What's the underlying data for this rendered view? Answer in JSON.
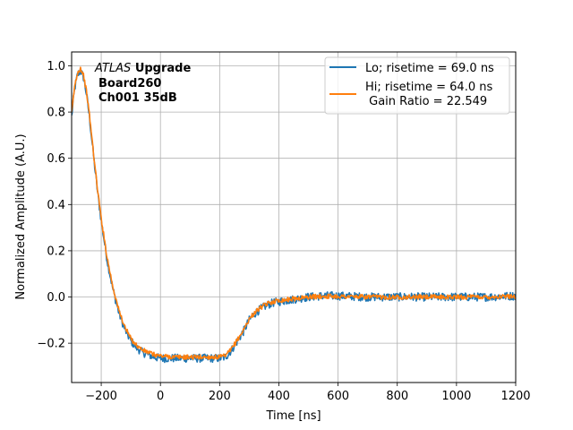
{
  "chart_data": {
    "type": "line",
    "xlabel": "Time [ns]",
    "ylabel": "Normalized Amplitude (A.U.)",
    "xlim": [
      -300,
      1200
    ],
    "ylim": [
      -0.37,
      1.06
    ],
    "xticks": [
      -200,
      0,
      200,
      400,
      600,
      800,
      1000,
      1200
    ],
    "xtick_labels": [
      "−200",
      "0",
      "200",
      "400",
      "600",
      "800",
      "1000",
      "1200"
    ],
    "yticks": [
      -0.2,
      0.0,
      0.2,
      0.4,
      0.6,
      0.8,
      1.0
    ],
    "ytick_labels": [
      "−0.2",
      "0.0",
      "0.2",
      "0.4",
      "0.6",
      "0.8",
      "1.0"
    ],
    "grid": true,
    "legend_position": "top-right",
    "annotation": {
      "line1_italic": "ATLAS",
      "line1_bold": "Upgrade",
      "line2": "Board260",
      "line3": "Ch001 35dB"
    },
    "series": [
      {
        "name": "Lo; risetime = 69.0 ns",
        "color": "#1f77b4",
        "noise": 0.018,
        "x": [
          -300,
          -290,
          -280,
          -270,
          -260,
          -250,
          -240,
          -230,
          -220,
          -210,
          -200,
          -180,
          -160,
          -140,
          -120,
          -100,
          -80,
          -60,
          -40,
          -20,
          0,
          50,
          100,
          150,
          200,
          220,
          240,
          260,
          280,
          300,
          320,
          340,
          360,
          380,
          400,
          450,
          500,
          550,
          600,
          700,
          800,
          900,
          1000,
          1100,
          1200
        ],
        "y": [
          0.78,
          0.9,
          0.96,
          0.98,
          0.95,
          0.88,
          0.78,
          0.66,
          0.54,
          0.43,
          0.33,
          0.16,
          0.03,
          -0.07,
          -0.14,
          -0.19,
          -0.22,
          -0.24,
          -0.25,
          -0.26,
          -0.265,
          -0.265,
          -0.265,
          -0.265,
          -0.265,
          -0.26,
          -0.23,
          -0.19,
          -0.15,
          -0.1,
          -0.07,
          -0.05,
          -0.035,
          -0.025,
          -0.02,
          -0.01,
          0.0,
          0.005,
          0.005,
          0.0,
          0.0,
          0.0,
          0.0,
          0.0,
          0.005
        ]
      },
      {
        "name": "Hi; risetime = 64.0 ns\n Gain Ratio = 22.549",
        "color": "#ff7f0e",
        "noise": 0.01,
        "x": [
          -300,
          -290,
          -280,
          -270,
          -260,
          -250,
          -240,
          -230,
          -220,
          -210,
          -200,
          -180,
          -160,
          -140,
          -120,
          -100,
          -80,
          -60,
          -40,
          -20,
          0,
          50,
          100,
          150,
          200,
          220,
          240,
          260,
          280,
          300,
          320,
          340,
          360,
          380,
          400,
          450,
          500,
          550,
          600,
          700,
          800,
          900,
          1000,
          1100,
          1200
        ],
        "y": [
          0.79,
          0.91,
          0.97,
          0.99,
          0.96,
          0.89,
          0.79,
          0.67,
          0.55,
          0.44,
          0.34,
          0.17,
          0.04,
          -0.06,
          -0.13,
          -0.18,
          -0.21,
          -0.23,
          -0.24,
          -0.25,
          -0.255,
          -0.26,
          -0.26,
          -0.26,
          -0.26,
          -0.255,
          -0.225,
          -0.185,
          -0.145,
          -0.095,
          -0.065,
          -0.045,
          -0.03,
          -0.02,
          -0.015,
          -0.008,
          0.0,
          0.003,
          0.003,
          0.0,
          0.0,
          0.0,
          0.0,
          0.0,
          0.003
        ]
      }
    ]
  }
}
